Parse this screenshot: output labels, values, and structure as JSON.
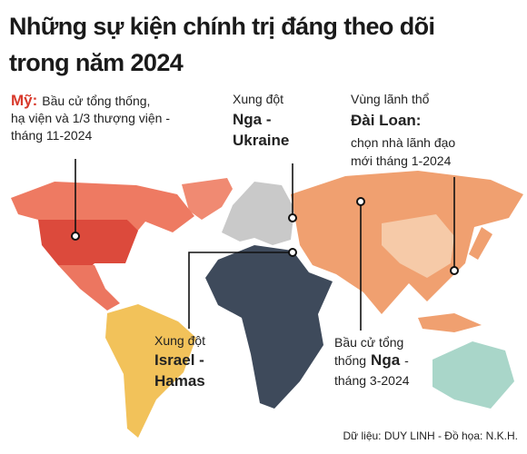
{
  "header": {
    "title": [
      "Những sự kiện chính trị đáng theo dõi",
      "trong năm 2024"
    ]
  },
  "annotations": [
    {
      "lines": [
        [
          {
            "text": "Mỹ:",
            "style": "highlight"
          },
          {
            "text": "Bầu cử tổng thống,"
          }
        ],
        [
          {
            "text": "hạ viện và 1/3 thượng viện -"
          }
        ],
        [
          {
            "text": "tháng 11-2024"
          }
        ]
      ]
    },
    {
      "lines": [
        [
          {
            "text": "Xung đột"
          }
        ],
        [
          {
            "text": "Nga -",
            "style": "bold"
          }
        ],
        [
          {
            "text": "Ukraine",
            "style": "bold"
          }
        ]
      ]
    },
    {
      "lines": [
        [
          {
            "text": "Vùng lãnh thổ"
          }
        ],
        [
          {
            "text": "Đài Loan:",
            "style": "bold"
          }
        ],
        [
          {
            "text": "chọn nhà lãnh đạo"
          }
        ],
        [
          {
            "text": "mới tháng 1-2024"
          }
        ]
      ]
    },
    {
      "lines": [
        [
          {
            "text": "Xung đột"
          }
        ],
        [
          {
            "text": "Israel -",
            "style": "bold"
          }
        ],
        [
          {
            "text": "Hamas",
            "style": "bold"
          }
        ]
      ]
    },
    {
      "lines": [
        [
          {
            "text": "Bầu cử tổng"
          }
        ],
        [
          {
            "text": "thống"
          },
          {
            "text": "Nga",
            "style": "bold"
          },
          {
            "text": "-"
          }
        ],
        [
          {
            "text": "tháng 3-2024"
          }
        ]
      ]
    }
  ],
  "source": "Dữ liệu: DUY LINH - Đồ họa: N.K.H."
}
